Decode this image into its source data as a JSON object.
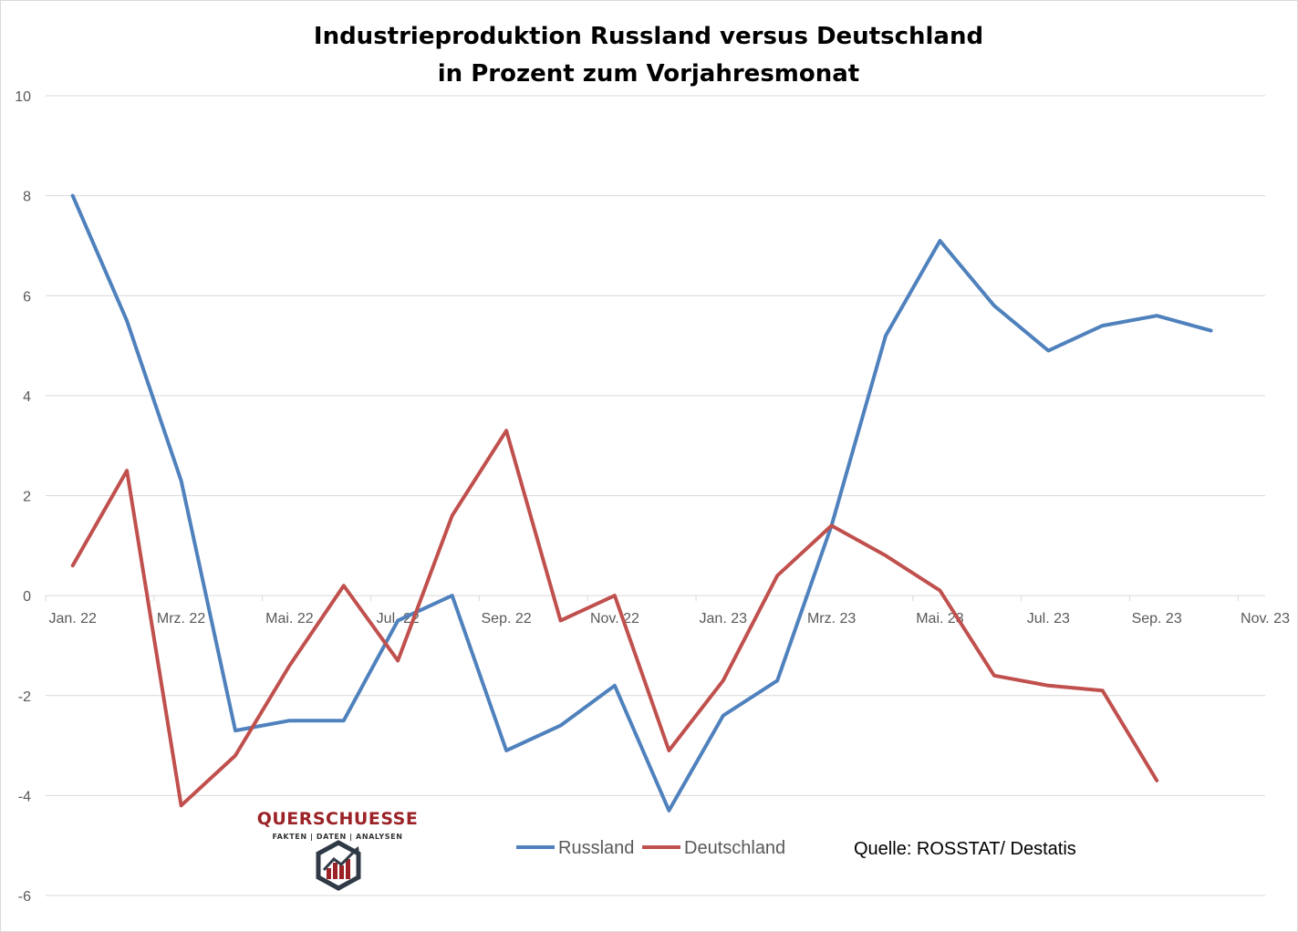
{
  "chart_data": {
    "type": "line",
    "title_line1": "Industrieproduktion  Russland versus Deutschland",
    "title_line2": "in Prozent zum Vorjahresmonat",
    "ylim": [
      -6,
      10
    ],
    "yticks": [
      "10",
      "8",
      "6",
      "4",
      "2",
      "0",
      "-2",
      "-4",
      "-6"
    ],
    "x_tick_labels": [
      "Jan. 22",
      "Mrz. 22",
      "Mai. 22",
      "Jul. 22",
      "Sep. 22",
      "Nov. 22",
      "Jan. 23",
      "Mrz. 23",
      "Mai. 23",
      "Jul. 23",
      "Sep. 23",
      "Nov. 23"
    ],
    "months": [
      "Jan. 22",
      "Feb. 22",
      "Mrz. 22",
      "Apr. 22",
      "Mai. 22",
      "Jun. 22",
      "Jul. 22",
      "Aug. 22",
      "Sep. 22",
      "Okt. 22",
      "Nov. 22",
      "Dez. 22",
      "Jan. 23",
      "Feb. 23",
      "Mrz. 23",
      "Apr. 23",
      "Mai. 23",
      "Jun. 23",
      "Jul. 23",
      "Aug. 23",
      "Sep. 23",
      "Okt. 23",
      "Nov. 23"
    ],
    "grid": true,
    "legend_position": "bottom-center",
    "series": [
      {
        "name": "Russland",
        "color": "#4f81bd",
        "values": [
          8.0,
          5.5,
          2.3,
          -2.7,
          -2.5,
          -2.5,
          -0.5,
          0.0,
          -3.1,
          -2.6,
          -1.8,
          -4.3,
          -2.4,
          -1.7,
          1.4,
          5.2,
          7.1,
          5.8,
          4.9,
          5.4,
          5.6,
          5.3
        ]
      },
      {
        "name": "Deutschland",
        "color": "#c0504d",
        "values": [
          0.6,
          2.5,
          -4.2,
          -3.2,
          -1.4,
          0.2,
          -1.3,
          1.6,
          3.3,
          -0.5,
          0.0,
          -3.1,
          -1.7,
          0.4,
          1.4,
          0.8,
          0.1,
          -1.6,
          -1.8,
          -1.9,
          -3.7
        ]
      }
    ],
    "source": "Quelle:  ROSSTAT/ Destatis"
  },
  "logo": {
    "name": "QUERSCHUESSE",
    "tagline": "FAKTEN | DATEN | ANALYSEN",
    "color": "#9b2226"
  }
}
